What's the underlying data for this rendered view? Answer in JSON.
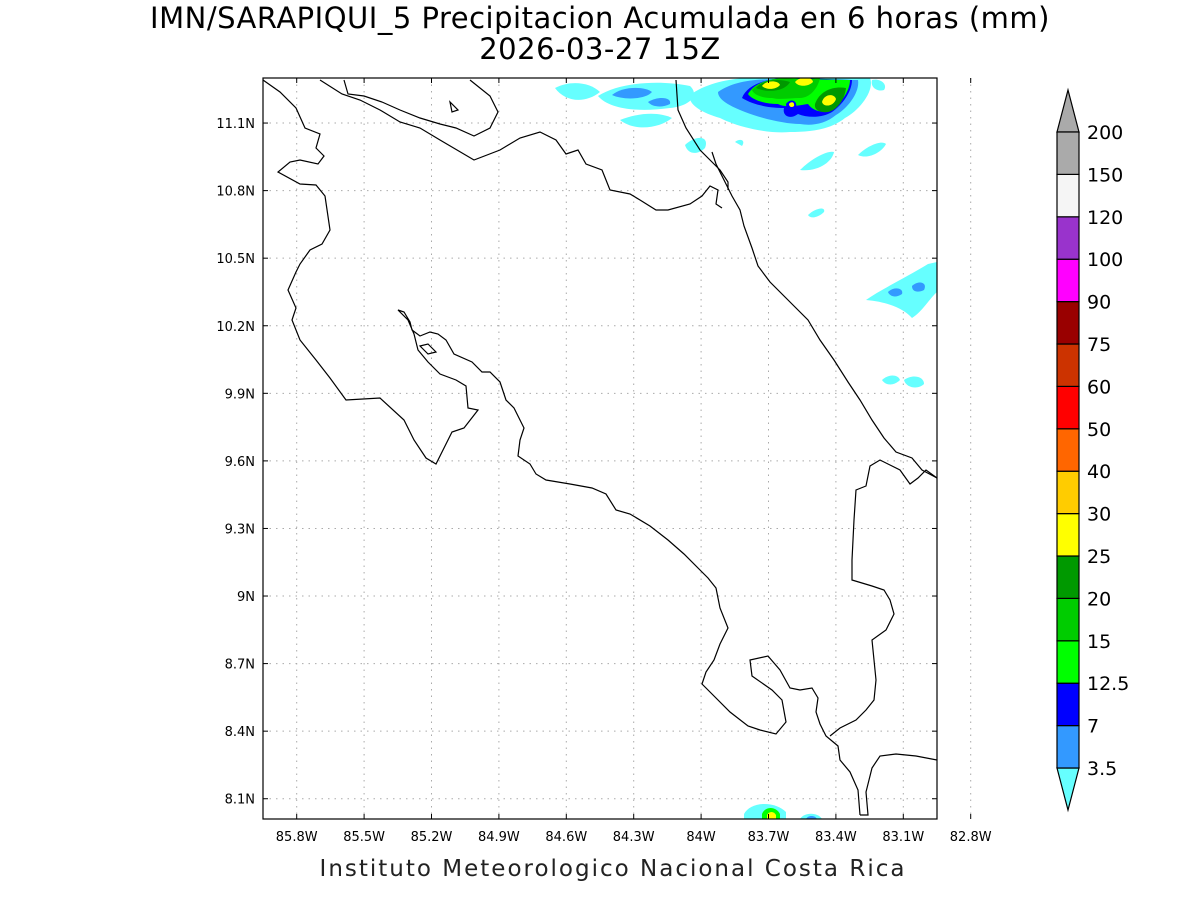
{
  "title": {
    "line1": "IMN/SARAPIQUI_5 Precipitacion Acumulada en 6 horas (mm)",
    "line2": "2026-03-27 15Z"
  },
  "footer": "Instituto Meteorologico Nacional Costa Rica",
  "map": {
    "lon_range": [
      -85.95,
      -82.95
    ],
    "lat_range": [
      8.01,
      11.3
    ],
    "lon_ticks": [
      {
        "value": -85.8,
        "label": "85.8W"
      },
      {
        "value": -85.5,
        "label": "85.5W"
      },
      {
        "value": -85.2,
        "label": "85.2W"
      },
      {
        "value": -84.9,
        "label": "84.9W"
      },
      {
        "value": -84.6,
        "label": "84.6W"
      },
      {
        "value": -84.3,
        "label": "84.3W"
      },
      {
        "value": -84.0,
        "label": "84W"
      },
      {
        "value": -83.7,
        "label": "83.7W"
      },
      {
        "value": -83.4,
        "label": "83.4W"
      },
      {
        "value": -83.1,
        "label": "83.1W"
      },
      {
        "value": -82.8,
        "label": "82.8W"
      }
    ],
    "lat_ticks": [
      {
        "value": 11.1,
        "label": "11.1N"
      },
      {
        "value": 10.8,
        "label": "10.8N"
      },
      {
        "value": 10.5,
        "label": "10.5N"
      },
      {
        "value": 10.2,
        "label": "10.2N"
      },
      {
        "value": 9.9,
        "label": "9.9N"
      },
      {
        "value": 9.6,
        "label": "9.6N"
      },
      {
        "value": 9.3,
        "label": "9.3N"
      },
      {
        "value": 9.0,
        "label": "9N"
      },
      {
        "value": 8.7,
        "label": "8.7N"
      },
      {
        "value": 8.4,
        "label": "8.4N"
      },
      {
        "value": 8.1,
        "label": "8.1N"
      }
    ],
    "grid": true
  },
  "colorbar": {
    "levels": [
      {
        "label": "3.5",
        "color": "#66ffff"
      },
      {
        "label": "7",
        "color": "#3399ff"
      },
      {
        "label": "12.5",
        "color": "#0000ff"
      },
      {
        "label": "15",
        "color": "#00ff00"
      },
      {
        "label": "20",
        "color": "#00cc00"
      },
      {
        "label": "25",
        "color": "#009900"
      },
      {
        "label": "30",
        "color": "#ffff00"
      },
      {
        "label": "40",
        "color": "#ffcc00"
      },
      {
        "label": "50",
        "color": "#ff6600"
      },
      {
        "label": "60",
        "color": "#ff0000"
      },
      {
        "label": "75",
        "color": "#cc3300"
      },
      {
        "label": "90",
        "color": "#990000"
      },
      {
        "label": "100",
        "color": "#ff00ff"
      },
      {
        "label": "120",
        "color": "#9933cc"
      },
      {
        "label": "150",
        "color": "#f5f5f5"
      },
      {
        "label": "200",
        "color": "#aaaaaa"
      }
    ]
  }
}
